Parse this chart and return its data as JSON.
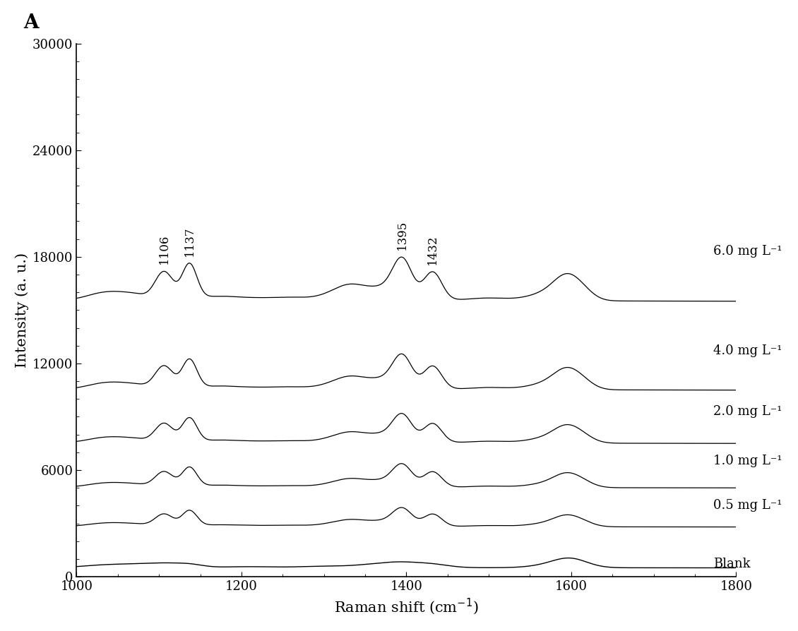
{
  "x_min": 1000,
  "x_max": 1800,
  "y_min": 0,
  "y_max": 30000,
  "xlabel": "Raman shift (cm¹)",
  "ylabel": "Intensity (a. u.)",
  "panel_label": "A",
  "labels": [
    "6.0 mg L⁻¹",
    "4.0 mg L⁻¹",
    "2.0 mg L⁻¹",
    "1.0 mg L⁻¹",
    "0.5 mg L⁻¹",
    "Blank"
  ],
  "offsets": [
    15500,
    10500,
    7500,
    5000,
    2800,
    500
  ],
  "x_ticks": [
    1000,
    1200,
    1400,
    1600,
    1800
  ],
  "y_ticks": [
    0,
    6000,
    12000,
    18000,
    24000,
    30000
  ],
  "line_color": "#000000",
  "background_color": "#ffffff",
  "label_fontsize": 13,
  "axis_fontsize": 15,
  "tick_fontsize": 13
}
